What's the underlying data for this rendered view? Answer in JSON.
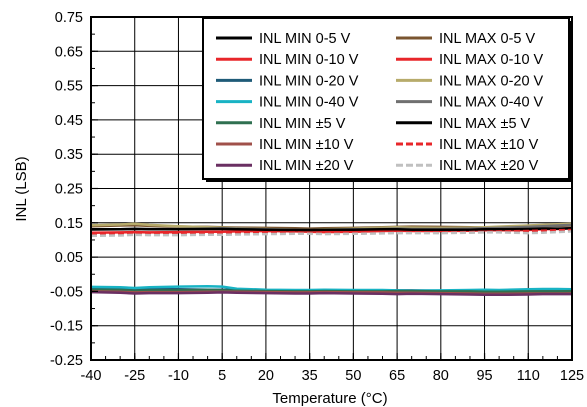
{
  "chart_data": {
    "type": "line",
    "xlabel": "Temperature (°C)",
    "ylabel": "INL (LSB)",
    "xlim": [
      -40,
      125
    ],
    "ylim": [
      -0.25,
      0.75
    ],
    "x_ticks": [
      -40,
      -25,
      -10,
      5,
      20,
      35,
      50,
      65,
      80,
      95,
      110,
      125
    ],
    "y_ticks": [
      "-0.25",
      "-0.15",
      "-0.05",
      "0.05",
      "0.15",
      "0.25",
      "0.35",
      "0.45",
      "0.55",
      "0.65",
      "0.75"
    ],
    "x_minor_step": 5,
    "y_minor_step": 0.05,
    "grid": true,
    "legend_position": "top-right",
    "x": [
      -40,
      -30,
      -25,
      -20,
      -10,
      0,
      5,
      10,
      20,
      30,
      35,
      40,
      50,
      60,
      65,
      70,
      80,
      90,
      95,
      100,
      110,
      115,
      120,
      125
    ],
    "series": [
      {
        "name": "INL MIN 0-5 V",
        "color": "#000000",
        "dash": "solid",
        "values": [
          -0.044,
          -0.045,
          -0.046,
          -0.045,
          -0.046,
          -0.047,
          -0.048,
          -0.048,
          -0.049,
          -0.05,
          -0.05,
          -0.05,
          -0.049,
          -0.05,
          -0.05,
          -0.049,
          -0.05,
          -0.05,
          -0.049,
          -0.049,
          -0.05,
          -0.049,
          -0.049,
          -0.05
        ]
      },
      {
        "name": "INL MIN 0-10 V",
        "color": "#e8262a",
        "dash": "solid",
        "values": [
          -0.047,
          -0.048,
          -0.049,
          -0.048,
          -0.049,
          -0.048,
          -0.049,
          -0.05,
          -0.052,
          -0.05,
          -0.05,
          -0.052,
          -0.053,
          -0.052,
          -0.052,
          -0.051,
          -0.052,
          -0.053,
          -0.054,
          -0.054,
          -0.052,
          -0.051,
          -0.051,
          -0.05
        ]
      },
      {
        "name": "INL MIN 0-20 V",
        "color": "#1f5b78",
        "dash": "solid",
        "values": [
          -0.042,
          -0.043,
          -0.044,
          -0.043,
          -0.044,
          -0.045,
          -0.045,
          -0.045,
          -0.047,
          -0.048,
          -0.048,
          -0.047,
          -0.048,
          -0.048,
          -0.047,
          -0.047,
          -0.048,
          -0.048,
          -0.047,
          -0.047,
          -0.046,
          -0.046,
          -0.046,
          -0.045
        ]
      },
      {
        "name": "INL MIN 0-40 V",
        "color": "#18b3c4",
        "dash": "solid",
        "values": [
          -0.037,
          -0.038,
          -0.04,
          -0.038,
          -0.036,
          -0.035,
          -0.036,
          -0.042,
          -0.045,
          -0.046,
          -0.046,
          -0.045,
          -0.046,
          -0.046,
          -0.047,
          -0.048,
          -0.047,
          -0.046,
          -0.045,
          -0.046,
          -0.044,
          -0.043,
          -0.043,
          -0.044
        ]
      },
      {
        "name": "INL MIN ±5 V",
        "color": "#2f7050",
        "dash": "solid",
        "values": [
          -0.045,
          -0.046,
          -0.048,
          -0.047,
          -0.047,
          -0.046,
          -0.047,
          -0.048,
          -0.049,
          -0.05,
          -0.05,
          -0.049,
          -0.05,
          -0.05,
          -0.049,
          -0.049,
          -0.05,
          -0.05,
          -0.051,
          -0.051,
          -0.05,
          -0.05,
          -0.05,
          -0.049
        ]
      },
      {
        "name": "INL MIN ±10 V",
        "color": "#a0504a",
        "dash": "solid",
        "values": [
          -0.05,
          -0.051,
          -0.053,
          -0.052,
          -0.052,
          -0.051,
          -0.051,
          -0.051,
          -0.052,
          -0.053,
          -0.053,
          -0.052,
          -0.053,
          -0.053,
          -0.054,
          -0.054,
          -0.055,
          -0.056,
          -0.057,
          -0.057,
          -0.056,
          -0.056,
          -0.056,
          -0.056
        ]
      },
      {
        "name": "INL MIN ±20 V",
        "color": "#6a2f62",
        "dash": "solid",
        "values": [
          -0.052,
          -0.054,
          -0.056,
          -0.055,
          -0.055,
          -0.054,
          -0.053,
          -0.054,
          -0.055,
          -0.056,
          -0.056,
          -0.055,
          -0.056,
          -0.057,
          -0.058,
          -0.057,
          -0.058,
          -0.059,
          -0.06,
          -0.06,
          -0.059,
          -0.058,
          -0.058,
          -0.058
        ]
      },
      {
        "name": "INL MAX 0-5 V",
        "color": "#7a5530",
        "dash": "solid",
        "values": [
          0.14,
          0.142,
          0.143,
          0.141,
          0.139,
          0.138,
          0.137,
          0.136,
          0.135,
          0.134,
          0.133,
          0.134,
          0.135,
          0.137,
          0.138,
          0.139,
          0.138,
          0.137,
          0.136,
          0.137,
          0.139,
          0.14,
          0.141,
          0.142
        ]
      },
      {
        "name": "INL MAX 0-10 V",
        "color": "#e8262a",
        "dash": "solid",
        "values": [
          0.121,
          0.122,
          0.123,
          0.122,
          0.123,
          0.124,
          0.124,
          0.125,
          0.126,
          0.125,
          0.124,
          0.123,
          0.124,
          0.126,
          0.127,
          0.126,
          0.126,
          0.127,
          0.128,
          0.128,
          0.129,
          0.131,
          0.132,
          0.134
        ]
      },
      {
        "name": "INL MAX 0-20 V",
        "color": "#b7ab6b",
        "dash": "solid",
        "values": [
          0.143,
          0.145,
          0.147,
          0.144,
          0.14,
          0.137,
          0.136,
          0.134,
          0.132,
          0.13,
          0.129,
          0.131,
          0.133,
          0.136,
          0.137,
          0.136,
          0.135,
          0.136,
          0.137,
          0.139,
          0.142,
          0.144,
          0.146,
          0.147
        ]
      },
      {
        "name": "INL MAX 0-40 V",
        "color": "#707070",
        "dash": "solid",
        "values": [
          0.13,
          0.131,
          0.133,
          0.132,
          0.132,
          0.133,
          0.134,
          0.133,
          0.131,
          0.13,
          0.129,
          0.13,
          0.131,
          0.132,
          0.133,
          0.132,
          0.132,
          0.133,
          0.134,
          0.135,
          0.138,
          0.14,
          0.142,
          0.144
        ]
      },
      {
        "name": "INL MAX ±5 V",
        "color": "#000000",
        "dash": "solid",
        "values": [
          0.131,
          0.131,
          0.132,
          0.131,
          0.131,
          0.132,
          0.132,
          0.131,
          0.13,
          0.129,
          0.129,
          0.13,
          0.13,
          0.131,
          0.131,
          0.13,
          0.13,
          0.13,
          0.131,
          0.131,
          0.132,
          0.133,
          0.133,
          0.134
        ]
      },
      {
        "name": "INL MAX ±10 V",
        "color": "#e8262a",
        "dash": "dashed",
        "values": [
          0.116,
          0.117,
          0.118,
          0.117,
          0.117,
          0.118,
          0.119,
          0.12,
          0.121,
          0.122,
          0.121,
          0.12,
          0.121,
          0.122,
          0.123,
          0.122,
          0.122,
          0.123,
          0.124,
          0.125,
          0.126,
          0.127,
          0.128,
          0.129
        ]
      },
      {
        "name": "INL MAX ±20 V",
        "color": "#c0c0c0",
        "dash": "dashed",
        "values": [
          0.112,
          0.113,
          0.115,
          0.114,
          0.114,
          0.115,
          0.115,
          0.116,
          0.117,
          0.118,
          0.118,
          0.117,
          0.118,
          0.119,
          0.12,
          0.12,
          0.12,
          0.121,
          0.122,
          0.122,
          0.12,
          0.121,
          0.123,
          0.125
        ]
      }
    ]
  }
}
